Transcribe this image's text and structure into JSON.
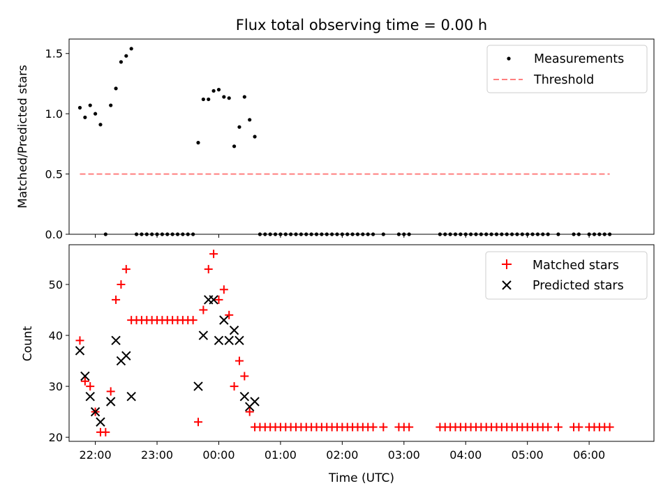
{
  "chart_data": [
    {
      "type": "scatter",
      "title": "Flux total observing time = 0.00 h",
      "ylabel": "Matched/Predicted stars",
      "ylim": [
        0,
        1.62
      ],
      "yticks": [
        {
          "value": 0.0,
          "label": "0.0"
        },
        {
          "value": 0.5,
          "label": "0.5"
        },
        {
          "value": 1.0,
          "label": "1.0"
        },
        {
          "value": 1.5,
          "label": "1.5"
        }
      ],
      "legend": {
        "placement": "top-right",
        "entries": [
          "Measurements",
          "Threshold"
        ]
      },
      "series": [
        {
          "name": "Measurements",
          "marker": "dot",
          "color": "#000000",
          "points": [
            [
              "21:45",
              1.05
            ],
            [
              "21:50",
              0.97
            ],
            [
              "21:55",
              1.07
            ],
            [
              "22:00",
              1.0
            ],
            [
              "22:05",
              0.91
            ],
            [
              "22:10",
              0.0
            ],
            [
              "22:15",
              1.07
            ],
            [
              "22:20",
              1.21
            ],
            [
              "22:25",
              1.43
            ],
            [
              "22:30",
              1.48
            ],
            [
              "22:35",
              1.54
            ],
            [
              "22:40",
              0
            ],
            [
              "22:45",
              0
            ],
            [
              "22:50",
              0
            ],
            [
              "22:55",
              0
            ],
            [
              "23:00",
              0
            ],
            [
              "23:05",
              0
            ],
            [
              "23:10",
              0
            ],
            [
              "23:15",
              0
            ],
            [
              "23:20",
              0
            ],
            [
              "23:25",
              0
            ],
            [
              "23:30",
              0
            ],
            [
              "23:35",
              0
            ],
            [
              "23:40",
              0.76
            ],
            [
              "23:45",
              1.12
            ],
            [
              "23:50",
              1.12
            ],
            [
              "23:55",
              1.19
            ],
            [
              "00:00",
              1.2
            ],
            [
              "00:05",
              1.14
            ],
            [
              "00:10",
              1.13
            ],
            [
              "00:15",
              0.73
            ],
            [
              "00:20",
              0.89
            ],
            [
              "00:25",
              1.14
            ],
            [
              "00:30",
              0.95
            ],
            [
              "00:35",
              0.81
            ],
            [
              "00:40",
              0
            ],
            [
              "00:45",
              0
            ],
            [
              "00:50",
              0
            ],
            [
              "00:55",
              0
            ],
            [
              "01:00",
              0
            ],
            [
              "01:05",
              0
            ],
            [
              "01:10",
              0
            ],
            [
              "01:15",
              0
            ],
            [
              "01:20",
              0
            ],
            [
              "01:25",
              0
            ],
            [
              "01:30",
              0
            ],
            [
              "01:35",
              0
            ],
            [
              "01:40",
              0
            ],
            [
              "01:45",
              0
            ],
            [
              "01:50",
              0
            ],
            [
              "01:55",
              0
            ],
            [
              "02:00",
              0
            ],
            [
              "02:05",
              0
            ],
            [
              "02:10",
              0
            ],
            [
              "02:15",
              0
            ],
            [
              "02:20",
              0
            ],
            [
              "02:25",
              0
            ],
            [
              "02:30",
              0
            ],
            [
              "02:40",
              0
            ],
            [
              "02:55",
              0
            ],
            [
              "03:00",
              0
            ],
            [
              "03:05",
              0
            ],
            [
              "03:35",
              0
            ],
            [
              "03:40",
              0
            ],
            [
              "03:45",
              0
            ],
            [
              "03:50",
              0
            ],
            [
              "03:55",
              0
            ],
            [
              "04:00",
              0
            ],
            [
              "04:05",
              0
            ],
            [
              "04:10",
              0
            ],
            [
              "04:15",
              0
            ],
            [
              "04:20",
              0
            ],
            [
              "04:25",
              0
            ],
            [
              "04:30",
              0
            ],
            [
              "04:35",
              0
            ],
            [
              "04:40",
              0
            ],
            [
              "04:45",
              0
            ],
            [
              "04:50",
              0
            ],
            [
              "04:55",
              0
            ],
            [
              "05:00",
              0
            ],
            [
              "05:05",
              0
            ],
            [
              "05:10",
              0
            ],
            [
              "05:15",
              0
            ],
            [
              "05:20",
              0
            ],
            [
              "05:30",
              0
            ],
            [
              "05:45",
              0
            ],
            [
              "05:50",
              0
            ],
            [
              "06:00",
              0
            ],
            [
              "06:05",
              0
            ],
            [
              "06:10",
              0
            ],
            [
              "06:15",
              0
            ],
            [
              "06:20",
              0
            ]
          ]
        },
        {
          "name": "Threshold",
          "marker": "dashed-line",
          "color": "#ff7f7f",
          "points": [
            [
              "21:45",
              0.5
            ],
            [
              "06:20",
              0.5
            ]
          ]
        }
      ]
    },
    {
      "type": "scatter",
      "xlabel": "Time (UTC)",
      "ylabel": "Count",
      "ylim": [
        19.2,
        57.8
      ],
      "yticks": [
        {
          "value": 20,
          "label": "20"
        },
        {
          "value": 30,
          "label": "30"
        },
        {
          "value": 40,
          "label": "40"
        },
        {
          "value": 50,
          "label": "50"
        }
      ],
      "xticks": [
        {
          "value": "22:00",
          "label": "22:00"
        },
        {
          "value": "23:00",
          "label": "23:00"
        },
        {
          "value": "00:00",
          "label": "00:00"
        },
        {
          "value": "01:00",
          "label": "01:00"
        },
        {
          "value": "02:00",
          "label": "02:00"
        },
        {
          "value": "03:00",
          "label": "03:00"
        },
        {
          "value": "04:00",
          "label": "04:00"
        },
        {
          "value": "05:00",
          "label": "05:00"
        },
        {
          "value": "06:00",
          "label": "06:00"
        }
      ],
      "legend": {
        "placement": "top-right",
        "entries": [
          "Matched stars",
          "Predicted stars"
        ]
      },
      "series": [
        {
          "name": "Matched stars",
          "marker": "plus",
          "color": "#ff0000",
          "points": [
            [
              "21:45",
              39
            ],
            [
              "21:50",
              31
            ],
            [
              "21:55",
              30
            ],
            [
              "22:00",
              25
            ],
            [
              "22:05",
              21
            ],
            [
              "22:10",
              21
            ],
            [
              "22:15",
              29
            ],
            [
              "22:20",
              47
            ],
            [
              "22:25",
              50
            ],
            [
              "22:30",
              53
            ],
            [
              "22:35",
              43
            ],
            [
              "22:40",
              43
            ],
            [
              "22:45",
              43
            ],
            [
              "22:50",
              43
            ],
            [
              "22:55",
              43
            ],
            [
              "23:00",
              43
            ],
            [
              "23:05",
              43
            ],
            [
              "23:10",
              43
            ],
            [
              "23:15",
              43
            ],
            [
              "23:20",
              43
            ],
            [
              "23:25",
              43
            ],
            [
              "23:30",
              43
            ],
            [
              "23:35",
              43
            ],
            [
              "23:40",
              23
            ],
            [
              "23:45",
              45
            ],
            [
              "23:50",
              53
            ],
            [
              "23:55",
              56
            ],
            [
              "00:00",
              47
            ],
            [
              "00:05",
              49
            ],
            [
              "00:10",
              44
            ],
            [
              "00:15",
              30
            ],
            [
              "00:20",
              35
            ],
            [
              "00:25",
              32
            ],
            [
              "00:30",
              25
            ],
            [
              "00:35",
              22
            ],
            [
              "00:40",
              22
            ],
            [
              "00:45",
              22
            ],
            [
              "00:50",
              22
            ],
            [
              "00:55",
              22
            ],
            [
              "01:00",
              22
            ],
            [
              "01:05",
              22
            ],
            [
              "01:10",
              22
            ],
            [
              "01:15",
              22
            ],
            [
              "01:20",
              22
            ],
            [
              "01:25",
              22
            ],
            [
              "01:30",
              22
            ],
            [
              "01:35",
              22
            ],
            [
              "01:40",
              22
            ],
            [
              "01:45",
              22
            ],
            [
              "01:50",
              22
            ],
            [
              "01:55",
              22
            ],
            [
              "02:00",
              22
            ],
            [
              "02:05",
              22
            ],
            [
              "02:10",
              22
            ],
            [
              "02:15",
              22
            ],
            [
              "02:20",
              22
            ],
            [
              "02:25",
              22
            ],
            [
              "02:30",
              22
            ],
            [
              "02:40",
              22
            ],
            [
              "02:55",
              22
            ],
            [
              "03:00",
              22
            ],
            [
              "03:05",
              22
            ],
            [
              "03:35",
              22
            ],
            [
              "03:40",
              22
            ],
            [
              "03:45",
              22
            ],
            [
              "03:50",
              22
            ],
            [
              "03:55",
              22
            ],
            [
              "04:00",
              22
            ],
            [
              "04:05",
              22
            ],
            [
              "04:10",
              22
            ],
            [
              "04:15",
              22
            ],
            [
              "04:20",
              22
            ],
            [
              "04:25",
              22
            ],
            [
              "04:30",
              22
            ],
            [
              "04:35",
              22
            ],
            [
              "04:40",
              22
            ],
            [
              "04:45",
              22
            ],
            [
              "04:50",
              22
            ],
            [
              "04:55",
              22
            ],
            [
              "05:00",
              22
            ],
            [
              "05:05",
              22
            ],
            [
              "05:10",
              22
            ],
            [
              "05:15",
              22
            ],
            [
              "05:20",
              22
            ],
            [
              "05:30",
              22
            ],
            [
              "05:45",
              22
            ],
            [
              "05:50",
              22
            ],
            [
              "06:00",
              22
            ],
            [
              "06:05",
              22
            ],
            [
              "06:10",
              22
            ],
            [
              "06:15",
              22
            ],
            [
              "06:20",
              22
            ]
          ]
        },
        {
          "name": "Predicted stars",
          "marker": "x",
          "color": "#000000",
          "points": [
            [
              "21:45",
              37
            ],
            [
              "21:50",
              32
            ],
            [
              "21:55",
              28
            ],
            [
              "22:00",
              25
            ],
            [
              "22:05",
              23
            ],
            [
              "22:15",
              27
            ],
            [
              "22:20",
              39
            ],
            [
              "22:25",
              35
            ],
            [
              "22:30",
              36
            ],
            [
              "22:35",
              28
            ],
            [
              "23:40",
              30
            ],
            [
              "23:45",
              40
            ],
            [
              "23:50",
              47
            ],
            [
              "23:55",
              47
            ],
            [
              "00:00",
              39
            ],
            [
              "00:05",
              43
            ],
            [
              "00:10",
              39
            ],
            [
              "00:15",
              41
            ],
            [
              "00:20",
              39
            ],
            [
              "00:25",
              28
            ],
            [
              "00:30",
              26
            ],
            [
              "00:35",
              27
            ]
          ]
        }
      ]
    }
  ]
}
